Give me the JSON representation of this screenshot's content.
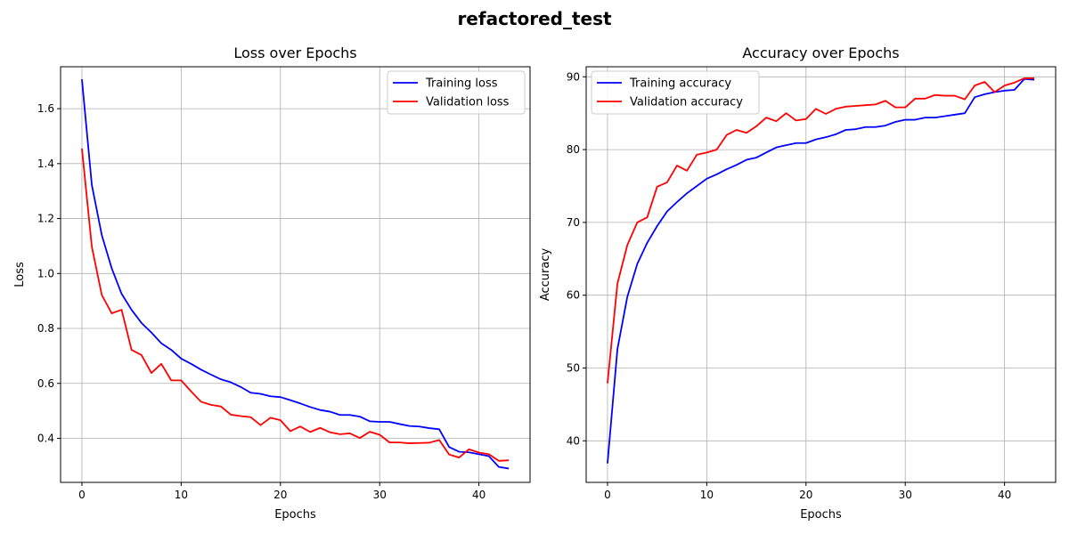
{
  "figure": {
    "suptitle": "refactored_test"
  },
  "chart_data": [
    {
      "type": "line",
      "title": "Loss over Epochs",
      "xlabel": "Epochs",
      "ylabel": "Loss",
      "xlim": [
        -2.15,
        45.15
      ],
      "ylim": [
        0.2396,
        1.7526
      ],
      "xticks": [
        0,
        10,
        20,
        30,
        40
      ],
      "xtick_labels": [
        "0",
        "10",
        "20",
        "30",
        "40"
      ],
      "yticks": [
        0.4,
        0.6,
        0.8,
        1.0,
        1.2,
        1.4,
        1.6
      ],
      "ytick_labels": [
        "0.4",
        "0.6",
        "0.8",
        "1.0",
        "1.2",
        "1.4",
        "1.6"
      ],
      "grid": true,
      "legend_position": "upper right",
      "x": [
        0,
        1,
        2,
        3,
        4,
        5,
        6,
        7,
        8,
        9,
        10,
        11,
        12,
        13,
        14,
        15,
        16,
        17,
        18,
        19,
        20,
        21,
        22,
        23,
        24,
        25,
        26,
        27,
        28,
        29,
        30,
        31,
        32,
        33,
        34,
        35,
        36,
        37,
        38,
        39,
        40,
        41,
        42,
        43
      ],
      "series": [
        {
          "name": "Training loss",
          "color": "#0000ff",
          "values": [
            1.707,
            1.322,
            1.14,
            1.019,
            0.926,
            0.868,
            0.82,
            0.785,
            0.746,
            0.722,
            0.69,
            0.671,
            0.65,
            0.632,
            0.615,
            0.604,
            0.587,
            0.566,
            0.562,
            0.553,
            0.55,
            0.539,
            0.527,
            0.514,
            0.503,
            0.497,
            0.485,
            0.485,
            0.479,
            0.462,
            0.46,
            0.46,
            0.452,
            0.445,
            0.443,
            0.437,
            0.433,
            0.368,
            0.351,
            0.349,
            0.342,
            0.335,
            0.296,
            0.29
          ]
        },
        {
          "name": "Validation loss",
          "color": "#ff0000",
          "values": [
            1.455,
            1.097,
            0.922,
            0.855,
            0.868,
            0.722,
            0.703,
            0.638,
            0.671,
            0.611,
            0.611,
            0.571,
            0.533,
            0.522,
            0.516,
            0.486,
            0.481,
            0.477,
            0.448,
            0.475,
            0.466,
            0.426,
            0.443,
            0.423,
            0.438,
            0.422,
            0.415,
            0.418,
            0.401,
            0.424,
            0.413,
            0.385,
            0.385,
            0.382,
            0.383,
            0.384,
            0.394,
            0.341,
            0.33,
            0.36,
            0.348,
            0.342,
            0.318,
            0.32
          ]
        }
      ]
    },
    {
      "type": "line",
      "title": "Accuracy over Epochs",
      "xlabel": "Epochs",
      "ylabel": "Accuracy",
      "xlim": [
        -2.15,
        45.15
      ],
      "ylim": [
        34.29,
        91.38
      ],
      "xticks": [
        0,
        10,
        20,
        30,
        40
      ],
      "xtick_labels": [
        "0",
        "10",
        "20",
        "30",
        "40"
      ],
      "yticks": [
        40,
        50,
        60,
        70,
        80,
        90
      ],
      "ytick_labels": [
        "40",
        "50",
        "60",
        "70",
        "80",
        "90"
      ],
      "grid": true,
      "legend_position": "upper left",
      "x": [
        0,
        1,
        2,
        3,
        4,
        5,
        6,
        7,
        8,
        9,
        10,
        11,
        12,
        13,
        14,
        15,
        16,
        17,
        18,
        19,
        20,
        21,
        22,
        23,
        24,
        25,
        26,
        27,
        28,
        29,
        30,
        31,
        32,
        33,
        34,
        35,
        36,
        37,
        38,
        39,
        40,
        41,
        42,
        43
      ],
      "series": [
        {
          "name": "Training accuracy",
          "color": "#0000ff",
          "values": [
            36.9,
            52.6,
            59.8,
            64.3,
            67.2,
            69.5,
            71.5,
            72.8,
            74.0,
            75.0,
            76.0,
            76.6,
            77.3,
            77.9,
            78.6,
            78.9,
            79.6,
            80.3,
            80.6,
            80.9,
            80.9,
            81.4,
            81.7,
            82.1,
            82.7,
            82.8,
            83.1,
            83.1,
            83.3,
            83.8,
            84.1,
            84.1,
            84.4,
            84.4,
            84.6,
            84.8,
            85.0,
            87.2,
            87.6,
            87.9,
            88.1,
            88.2,
            89.7,
            89.6
          ]
        },
        {
          "name": "Validation accuracy",
          "color": "#ff0000",
          "values": [
            47.9,
            61.6,
            66.9,
            70.0,
            70.7,
            74.9,
            75.5,
            77.8,
            77.1,
            79.3,
            79.6,
            80.0,
            82.0,
            82.7,
            82.3,
            83.2,
            84.4,
            83.9,
            85.0,
            84.0,
            84.2,
            85.6,
            84.9,
            85.6,
            85.9,
            86.0,
            86.1,
            86.2,
            86.7,
            85.8,
            85.8,
            87.0,
            87.0,
            87.5,
            87.4,
            87.4,
            86.9,
            88.8,
            89.3,
            87.9,
            88.8,
            89.2,
            89.8,
            89.8
          ]
        }
      ]
    }
  ]
}
